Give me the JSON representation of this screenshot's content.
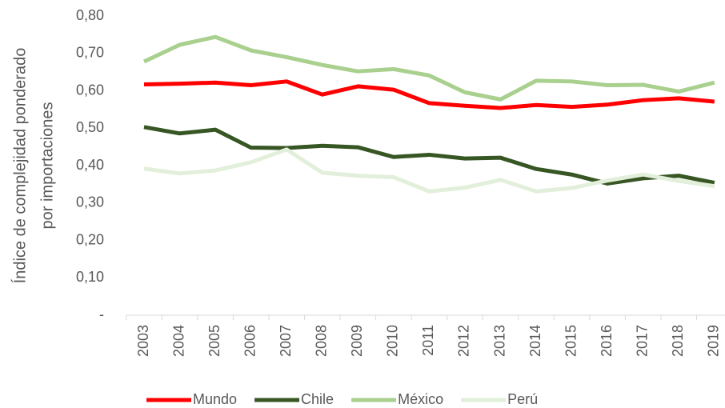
{
  "chart_data": {
    "type": "line",
    "y_label": [
      "Índice de complejidad ponderado",
      "por importaciones"
    ],
    "categories": [
      "2003",
      "2004",
      "2005",
      "2006",
      "2007",
      "2008",
      "2009",
      "2010",
      "2011",
      "2012",
      "2013",
      "2014",
      "2015",
      "2016",
      "2017",
      "2018",
      "2019"
    ],
    "series": [
      {
        "name": "Mundo",
        "color": "#ff0000",
        "values": [
          0.617,
          0.619,
          0.622,
          0.615,
          0.625,
          0.59,
          0.612,
          0.603,
          0.567,
          0.56,
          0.554,
          0.562,
          0.557,
          0.563,
          0.575,
          0.58,
          0.571
        ]
      },
      {
        "name": "Chile",
        "color": "#375623",
        "values": [
          0.503,
          0.486,
          0.496,
          0.448,
          0.447,
          0.453,
          0.449,
          0.423,
          0.429,
          0.419,
          0.421,
          0.391,
          0.376,
          0.352,
          0.366,
          0.373,
          0.354
        ]
      },
      {
        "name": "México",
        "color": "#a9d08e",
        "values": [
          0.678,
          0.723,
          0.744,
          0.708,
          0.69,
          0.669,
          0.652,
          0.658,
          0.641,
          0.596,
          0.577,
          0.627,
          0.625,
          0.615,
          0.616,
          0.598,
          0.622
        ]
      },
      {
        "name": "Perú",
        "color": "#e2efda",
        "values": [
          0.392,
          0.379,
          0.387,
          0.409,
          0.443,
          0.381,
          0.373,
          0.369,
          0.331,
          0.341,
          0.362,
          0.331,
          0.34,
          0.36,
          0.376,
          0.359,
          0.345
        ]
      }
    ],
    "ylim": [
      0,
      0.8
    ],
    "yticks": [
      {
        "value": 0,
        "label": "-"
      },
      {
        "value": 0.1,
        "label": "0,10"
      },
      {
        "value": 0.2,
        "label": "0,20"
      },
      {
        "value": 0.3,
        "label": "0,30"
      },
      {
        "value": 0.4,
        "label": "0,40"
      },
      {
        "value": 0.5,
        "label": "0,50"
      },
      {
        "value": 0.6,
        "label": "0,60"
      },
      {
        "value": 0.7,
        "label": "0,70"
      },
      {
        "value": 0.8,
        "label": "0,80"
      }
    ],
    "grid": false,
    "legend": "bottom"
  }
}
